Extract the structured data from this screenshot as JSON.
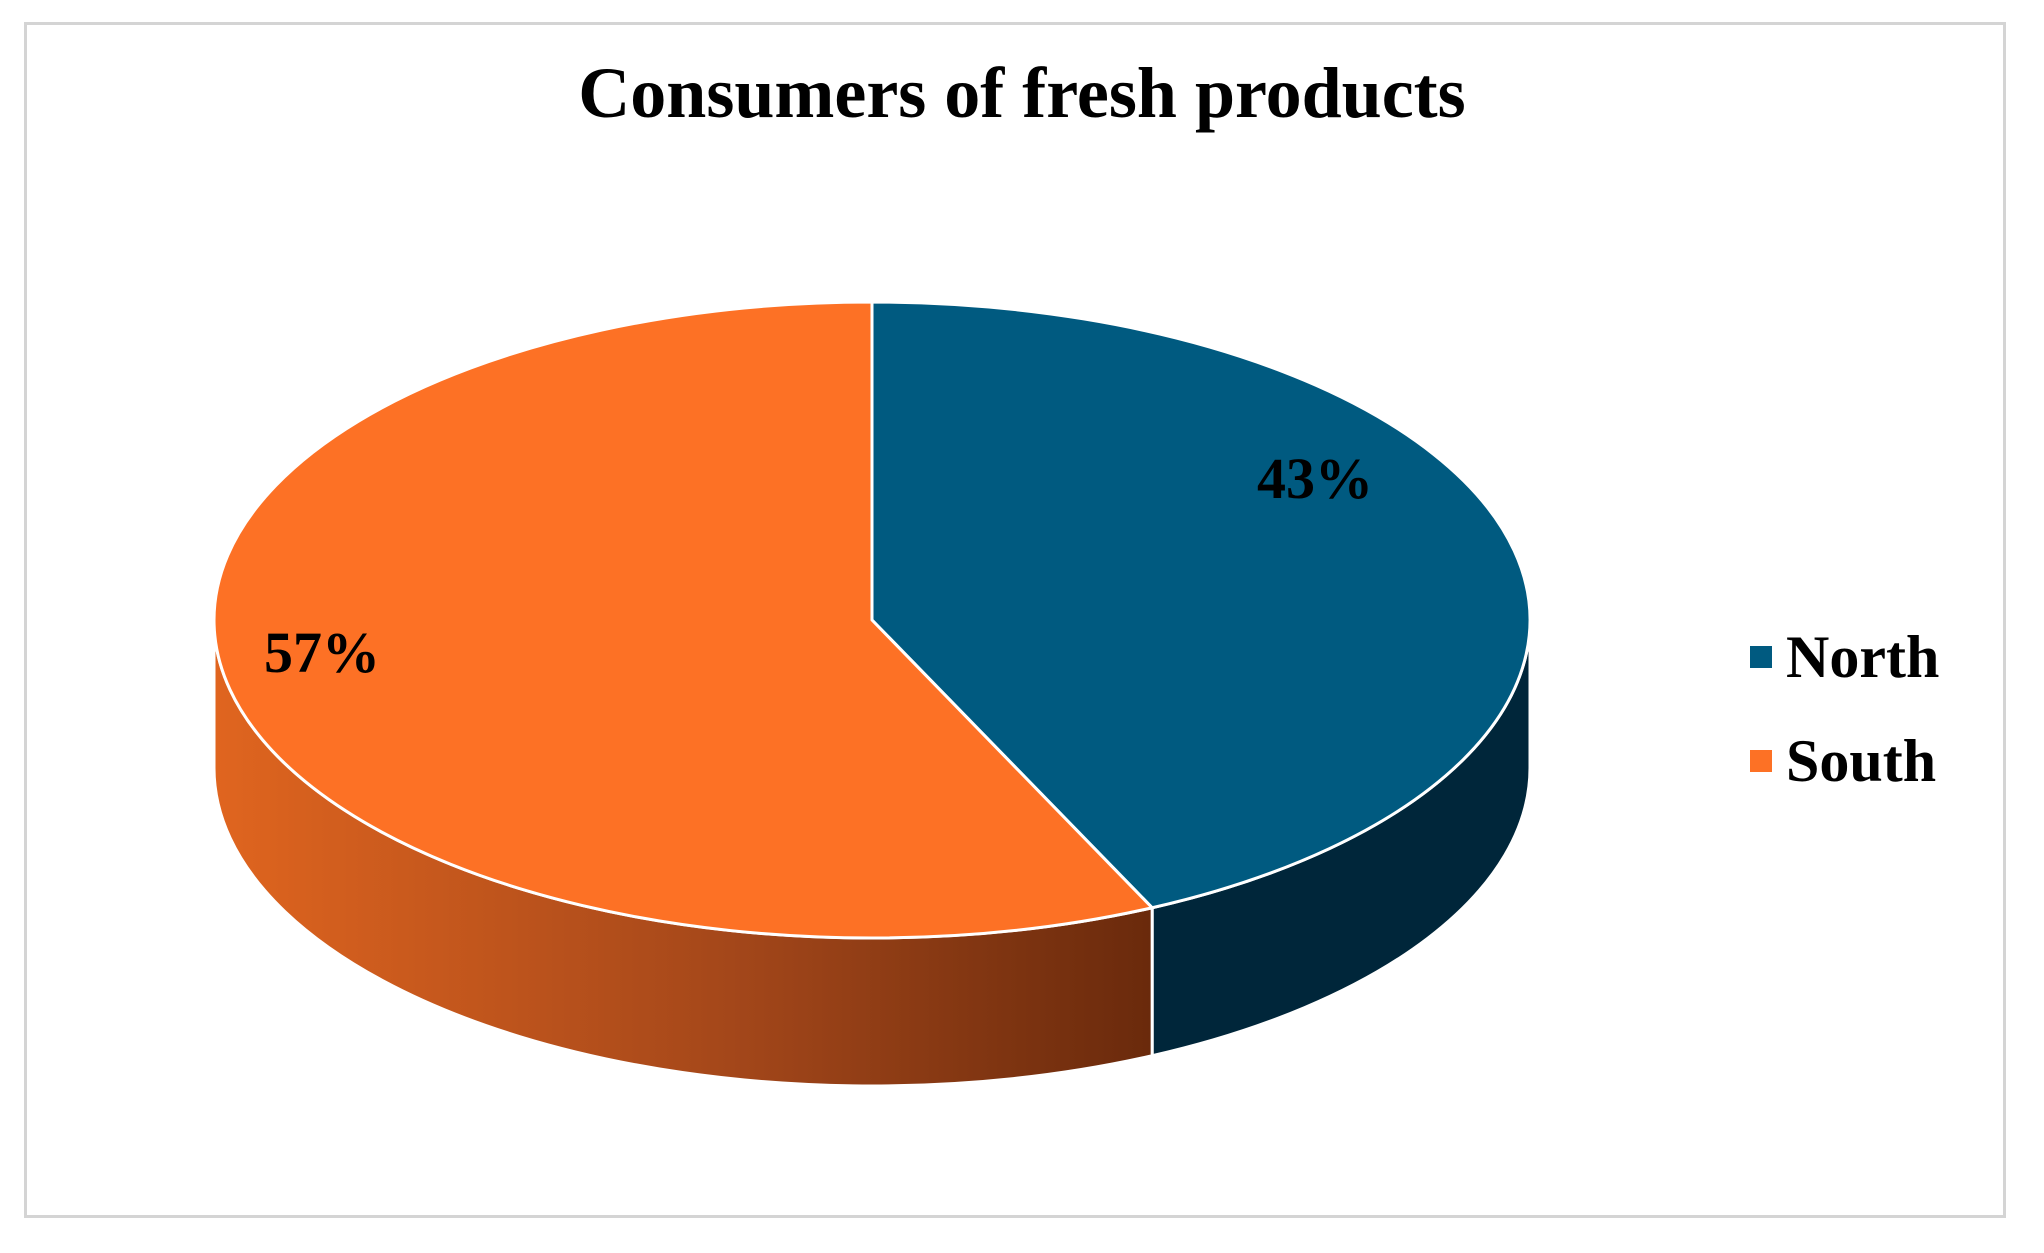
{
  "chart_data": {
    "type": "pie",
    "title": "Consumers of fresh products",
    "categories": [
      "North",
      "South"
    ],
    "values": [
      43,
      57
    ],
    "labels": [
      "43%",
      "57%"
    ],
    "colors": [
      "#005a80",
      "#fd7125"
    ],
    "side_colors": [
      "#00263a",
      "#c4591c"
    ],
    "legend_position": "right",
    "style": "3d"
  }
}
